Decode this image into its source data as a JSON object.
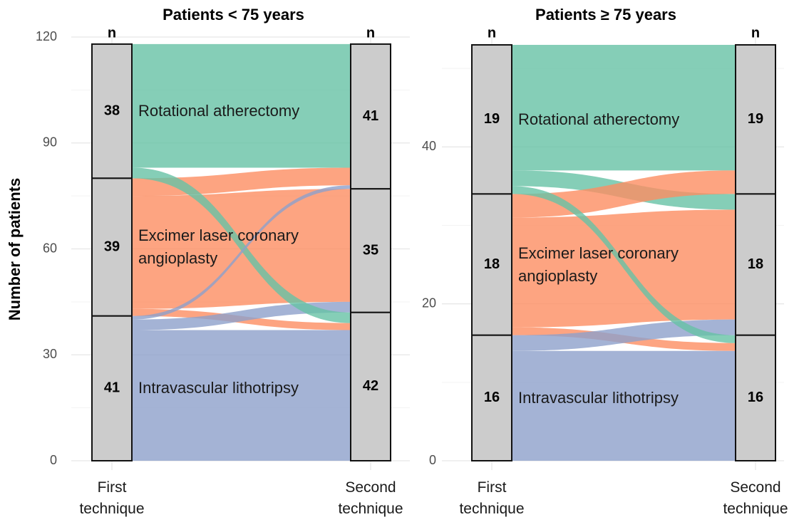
{
  "chart_data": [
    {
      "type": "alluvial",
      "title": "Patients < 75 years",
      "ylabel": "Number of patients",
      "axes": [
        "First technique",
        "Second technique"
      ],
      "count_header": "n",
      "strata": [
        {
          "name": "Rotational atherectomy",
          "color": "#66c2a5"
        },
        {
          "name": "Excimer laser coronary angioplasty",
          "color": "#fc8d62"
        },
        {
          "name": "Intravascular lithotripsy",
          "color": "#8da0cb"
        }
      ],
      "first_counts": [
        38,
        39,
        41
      ],
      "second_counts": [
        41,
        35,
        42
      ],
      "flows": [
        [
          35,
          0,
          3
        ],
        [
          5,
          32,
          2
        ],
        [
          1,
          3,
          37
        ]
      ],
      "ylim": [
        0,
        120
      ],
      "yticks": [
        0,
        30,
        60,
        90,
        120
      ],
      "minor_yticks": [
        15,
        45,
        75,
        105
      ],
      "grid": true
    },
    {
      "type": "alluvial",
      "title": "Patients ≥ 75 years",
      "axes": [
        "First technique",
        "Second technique"
      ],
      "count_header": "n",
      "strata": [
        {
          "name": "Rotational atherectomy",
          "color": "#66c2a5"
        },
        {
          "name": "Excimer laser coronary angioplasty",
          "color": "#fc8d62"
        },
        {
          "name": "Intravascular lithotripsy",
          "color": "#8da0cb"
        }
      ],
      "first_counts": [
        19,
        18,
        16
      ],
      "second_counts": [
        19,
        18,
        16
      ],
      "flows": [
        [
          16,
          2,
          1
        ],
        [
          3,
          14,
          1
        ],
        [
          0,
          2,
          14
        ]
      ],
      "ylim": [
        0,
        54
      ],
      "yticks": [
        0,
        20,
        40
      ],
      "minor_yticks": [
        10,
        30,
        50
      ],
      "grid": true
    }
  ]
}
